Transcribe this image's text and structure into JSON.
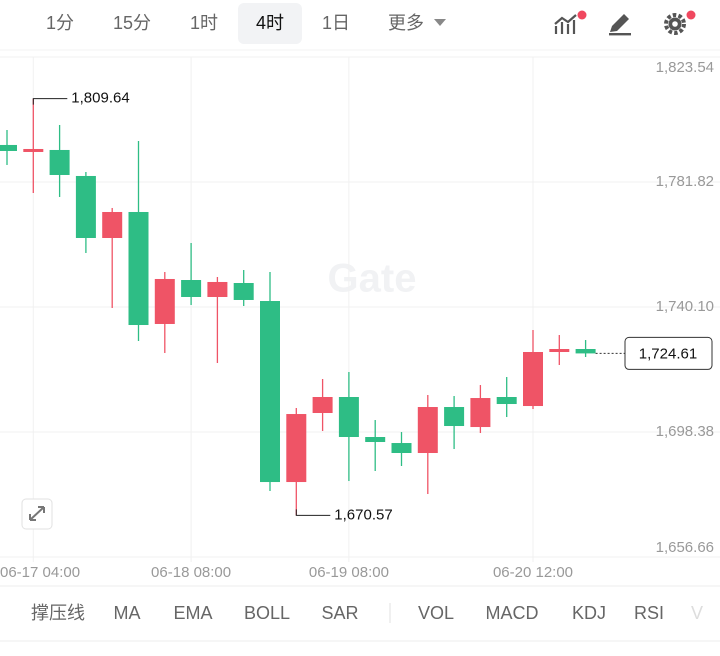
{
  "toolbar": {
    "tabs": [
      "1分",
      "15分",
      "1时",
      "4时",
      "1日",
      "更多"
    ],
    "selected_index": 3
  },
  "chart_data": {
    "type": "candlestick",
    "watermark": "Gate",
    "categories": [
      null,
      "06-17 04:00",
      null,
      null,
      null,
      null,
      null,
      "06-18 08:00",
      null,
      null,
      null,
      null,
      null,
      "06-19 08:00",
      null,
      null,
      null,
      null,
      null,
      null,
      "06-20 12:00",
      null,
      null
    ],
    "open": [
      1794.18,
      1791.84,
      1792.51,
      1783.83,
      1763.13,
      1771.81,
      1734.43,
      1749.11,
      1743.44,
      1748.11,
      1742.1,
      1681.68,
      1704.72,
      1710.06,
      1696.71,
      1694.7,
      1691.37,
      1706.72,
      1700.04,
      1710.06,
      1707.05,
      1725.08,
      1726.08
    ],
    "high": [
      1799.18,
      1809.64,
      1800.85,
      1785.16,
      1773.15,
      1795.51,
      1751.78,
      1761.46,
      1750.11,
      1752.45,
      1751.78,
      1706.39,
      1716.07,
      1718.4,
      1702.38,
      1698.37,
      1710.73,
      1710.39,
      1714.06,
      1716.73,
      1732.42,
      1730.75,
      1729.08
    ],
    "low": [
      1787.5,
      1778.15,
      1776.82,
      1758.13,
      1739.77,
      1728.75,
      1724.75,
      1740.77,
      1721.41,
      1740.43,
      1678.68,
      1670.57,
      1698.71,
      1682.02,
      1685.36,
      1687.03,
      1677.68,
      1692.7,
      1698.04,
      1703.38,
      1706.05,
      1720.74,
      1723.41
    ],
    "close": [
      1792.17,
      1792.84,
      1784.16,
      1763.13,
      1771.81,
      1734.09,
      1749.45,
      1743.44,
      1748.45,
      1742.44,
      1681.68,
      1704.38,
      1710.06,
      1696.71,
      1695.04,
      1691.37,
      1706.72,
      1700.38,
      1709.72,
      1707.72,
      1725.08,
      1726.08,
      1724.61
    ],
    "up_color": "#ef5466",
    "down_color": "#2ebd85",
    "ylim": [
      1656.66,
      1823.54
    ],
    "yticks": [
      {
        "value": 1656.66,
        "label": "1,656.66"
      },
      {
        "value": 1698.38,
        "label": "1,698.38"
      },
      {
        "value": 1740.1,
        "label": "1,740.10"
      },
      {
        "value": 1781.82,
        "label": "1,781.82"
      },
      {
        "value": 1823.54,
        "label": "1,823.54"
      }
    ],
    "grid": true,
    "max_label": {
      "value": 1809.64,
      "label": "1,809.64"
    },
    "min_label": {
      "value": 1670.57,
      "label": "1,670.57"
    },
    "last_label": {
      "value": 1724.61,
      "label": "1,724.61"
    }
  },
  "indicators": [
    "撑压线",
    "MA",
    "EMA",
    "BOLL",
    "SAR",
    "VOL",
    "MACD",
    "KDJ",
    "RSI",
    "V"
  ]
}
